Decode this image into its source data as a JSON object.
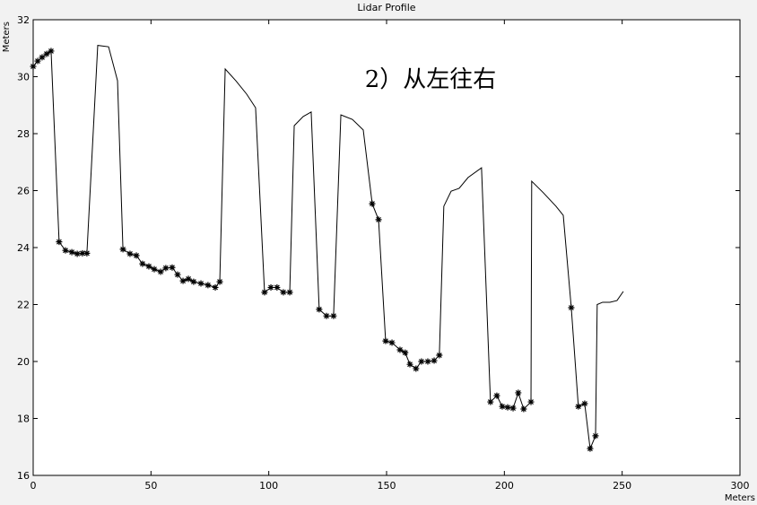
{
  "chart_data": {
    "type": "line",
    "title": "Lidar Profile",
    "ylabel": "Meters",
    "xlabel": "Meters",
    "annotation": "2）从左往右",
    "xlim": [
      0,
      300
    ],
    "xticks": [
      0,
      50,
      100,
      150,
      200,
      250,
      300
    ],
    "ylim": [
      16,
      32
    ],
    "yticks": [
      16,
      18,
      20,
      22,
      24,
      26,
      28,
      30,
      32
    ],
    "series": [
      {
        "color": "#000000",
        "marker": "none",
        "x": [
          0,
          1.9,
          3.8,
          5.7,
          7.6,
          11,
          13.7,
          16.4,
          18.7,
          20.9,
          22.8,
          27.4,
          32,
          35.8,
          38.1,
          41.1,
          43.8,
          46.4,
          49.1,
          51.4,
          54.1,
          56.3,
          59,
          61.3,
          63.6,
          65.9,
          68.1,
          71.2,
          74.2,
          77.3,
          79.2,
          81.5,
          86,
          90.6,
          94.4,
          98.2,
          100.9,
          103.5,
          106.2,
          108.9,
          110.8,
          114.6,
          118,
          121.4,
          124.5,
          127.5,
          130.6,
          135.5,
          140.1,
          143.9,
          146.6,
          149.6,
          152.3,
          155.7,
          157.9,
          159.9,
          162.5,
          164.8,
          167.5,
          170.2,
          172.4,
          174.3,
          177.4,
          180.8,
          184.6,
          190.3,
          194.1,
          196.8,
          199.1,
          201.4,
          203.7,
          205.9,
          208.2,
          211.3,
          211.6,
          216.6,
          221.9,
          225,
          228.4,
          231.4,
          234.1,
          236.4,
          238.7,
          239.4,
          241.7,
          244.8,
          247.8,
          250.5
        ],
        "values": [
          30.36,
          30.55,
          30.68,
          30.8,
          30.9,
          24.2,
          23.9,
          23.84,
          23.78,
          23.8,
          23.8,
          31.1,
          31.05,
          29.86,
          23.94,
          23.78,
          23.72,
          23.43,
          23.34,
          23.24,
          23.15,
          23.28,
          23.3,
          23.05,
          22.83,
          22.9,
          22.8,
          22.74,
          22.68,
          22.6,
          22.8,
          30.27,
          29.86,
          29.39,
          28.91,
          22.43,
          22.6,
          22.6,
          22.43,
          22.43,
          28.28,
          28.6,
          28.76,
          21.83,
          21.6,
          21.6,
          28.66,
          28.5,
          28.13,
          25.54,
          24.98,
          20.72,
          20.66,
          20.41,
          20.31,
          19.9,
          19.75,
          20,
          20,
          20.03,
          20.22,
          25.45,
          25.98,
          26.08,
          26.46,
          26.8,
          18.58,
          18.8,
          18.42,
          18.39,
          18.36,
          18.9,
          18.33,
          18.58,
          26.33,
          25.92,
          25.45,
          25.13,
          21.89,
          18.42,
          18.52,
          16.94,
          17.39,
          22.0,
          22.08,
          22.08,
          22.14,
          22.46
        ]
      },
      {
        "color": "#000000",
        "marker": "asterisk",
        "x": [
          0,
          1.9,
          3.8,
          5.7,
          7.6,
          11,
          13.7,
          16.4,
          18.7,
          20.9,
          22.8,
          38.1,
          41.1,
          43.8,
          46.4,
          49.1,
          51.4,
          54.1,
          56.3,
          59,
          61.3,
          63.6,
          65.9,
          68.1,
          71.2,
          74.2,
          77.3,
          79.2,
          98.2,
          100.9,
          103.5,
          106.2,
          108.9,
          121.4,
          124.5,
          127.5,
          143.9,
          146.6,
          149.6,
          152.3,
          155.7,
          157.9,
          159.9,
          162.5,
          164.8,
          167.5,
          170.2,
          172.4,
          194.1,
          196.8,
          199.1,
          201.4,
          203.7,
          205.9,
          208.2,
          211.3,
          228.4,
          231.4,
          234.1,
          236.4,
          238.7
        ],
        "values": [
          30.36,
          30.55,
          30.68,
          30.8,
          30.9,
          24.2,
          23.9,
          23.84,
          23.78,
          23.8,
          23.8,
          23.94,
          23.78,
          23.72,
          23.43,
          23.34,
          23.24,
          23.15,
          23.28,
          23.3,
          23.05,
          22.83,
          22.9,
          22.8,
          22.74,
          22.68,
          22.6,
          22.8,
          22.43,
          22.6,
          22.6,
          22.43,
          22.43,
          21.83,
          21.6,
          21.6,
          25.54,
          24.98,
          20.72,
          20.66,
          20.41,
          20.31,
          19.9,
          19.75,
          20,
          20,
          20.03,
          20.22,
          18.58,
          18.8,
          18.42,
          18.39,
          18.36,
          18.9,
          18.33,
          18.58,
          21.89,
          18.42,
          18.52,
          16.94,
          17.39
        ]
      }
    ]
  }
}
